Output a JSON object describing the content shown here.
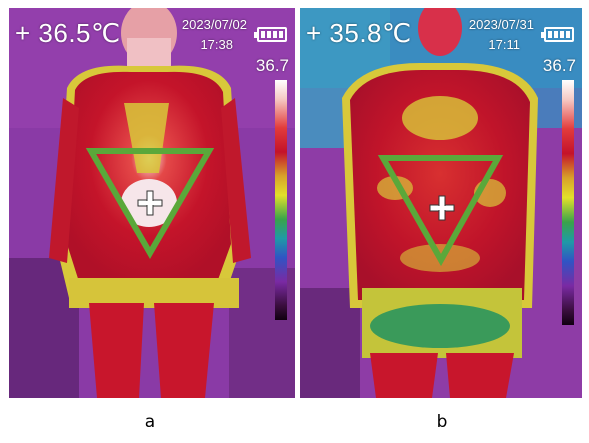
{
  "panels": [
    {
      "spot_temp": "+ 36.5℃",
      "date": "2023/07/02",
      "time": "17:38",
      "scale_max": "36.7",
      "caption": "a"
    },
    {
      "spot_temp": "+ 35.8℃",
      "date": "2023/07/31",
      "time": "17:11",
      "scale_max": "36.7",
      "caption": "b"
    }
  ],
  "colors": {
    "background_cold": "#7a3aa8",
    "body_hot": "#c8142a",
    "mid_yellow": "#d8d02a",
    "marker_triangle": "#5aa83a",
    "crosshair": "#ffffff"
  },
  "icons": [
    "crosshair-icon",
    "battery-icon",
    "triangle-marker"
  ]
}
